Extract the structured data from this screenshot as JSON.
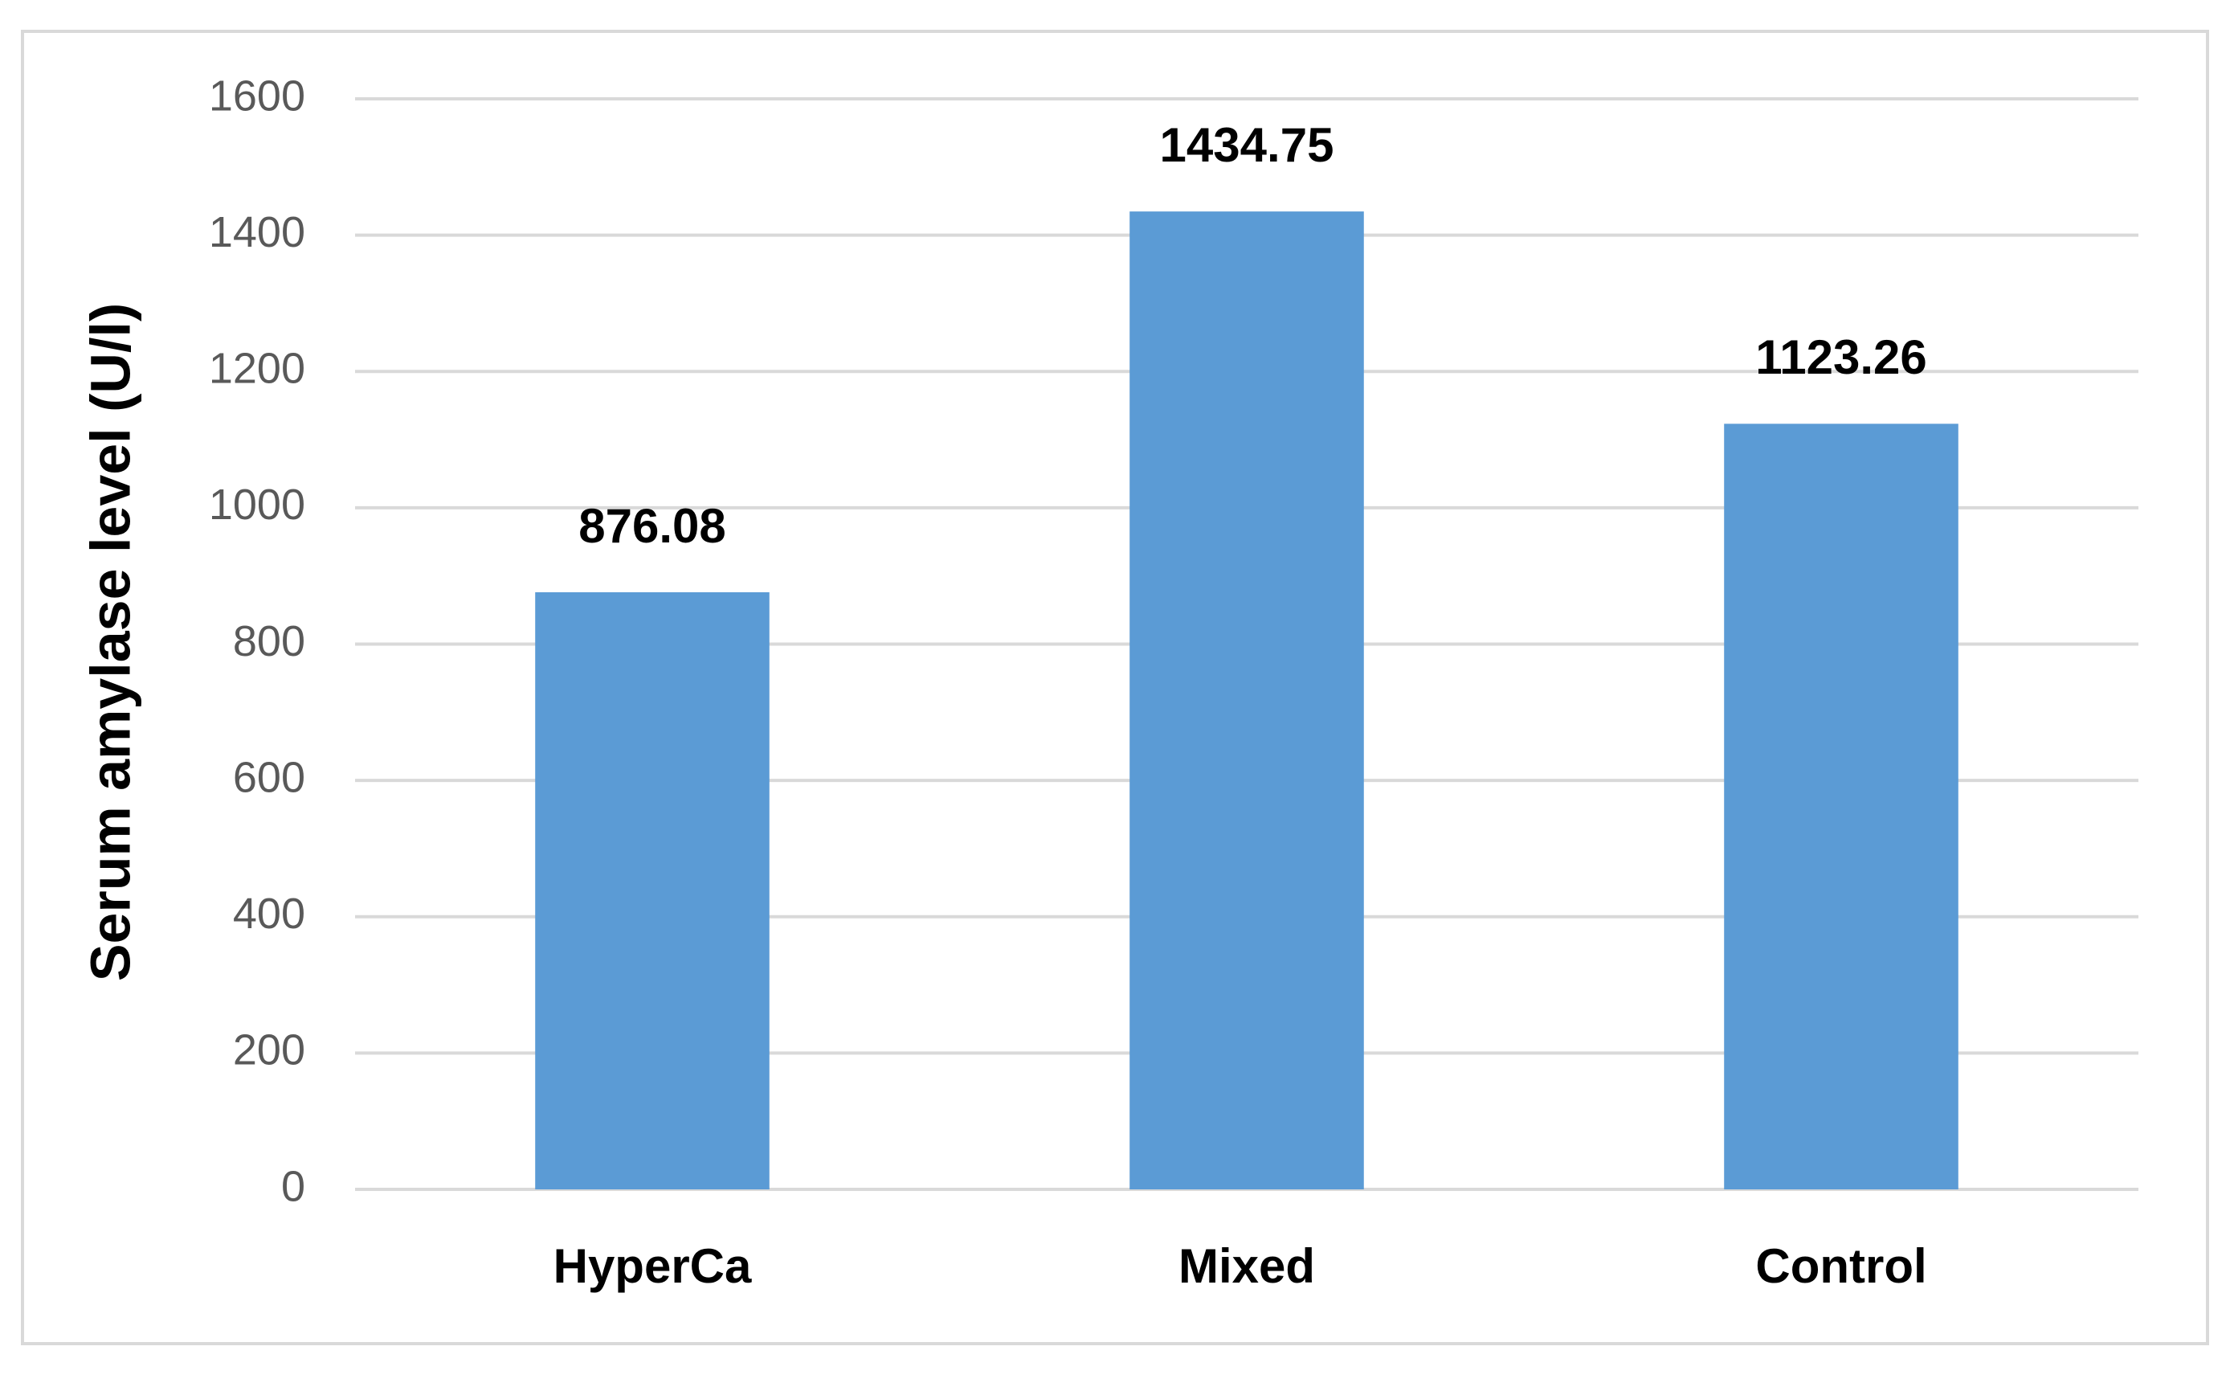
{
  "chart_data": {
    "type": "bar",
    "y_label": "Serum amylase level (U/l)",
    "categories": [
      "HyperCa",
      "Mixed",
      "Control"
    ],
    "values": [
      876.08,
      1434.75,
      1123.26
    ],
    "color": "#5b9bd5",
    "ylim": [
      0,
      1600
    ],
    "yticks": [
      0,
      200,
      400,
      600,
      800,
      1000,
      1200,
      1400,
      1600
    ],
    "grid": true
  }
}
